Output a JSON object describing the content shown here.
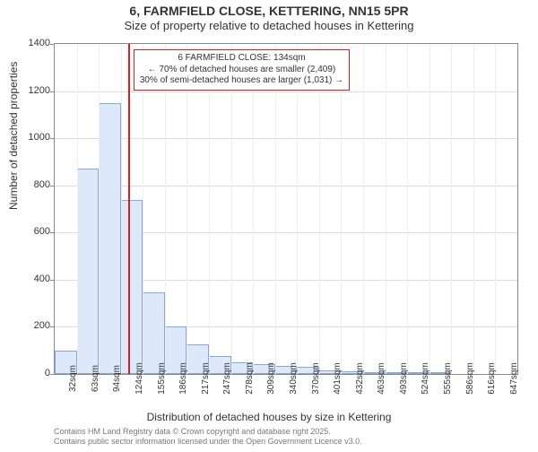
{
  "title_main": "6, FARMFIELD CLOSE, KETTERING, NN15 5PR",
  "title_sub": "Size of property relative to detached houses in Kettering",
  "y_axis_label": "Number of detached properties",
  "x_axis_label": "Distribution of detached houses by size in Kettering",
  "footer_line1": "Contains HM Land Registry data © Crown copyright and database right 2025.",
  "footer_line2": "Contains public sector information licensed under the Open Government Licence v3.0.",
  "chart": {
    "type": "histogram",
    "ylim": [
      0,
      1400
    ],
    "ytick_step": 200,
    "background_color": "#ffffff",
    "grid_color": "#dcdcdc",
    "bar_fill": "#dde8fa",
    "bar_border": "#88a8d8",
    "vline_color": "#d62020",
    "vline_category_index": 3,
    "x_categories": [
      "32sqm",
      "63sqm",
      "94sqm",
      "124sqm",
      "155sqm",
      "186sqm",
      "217sqm",
      "247sqm",
      "278sqm",
      "309sqm",
      "340sqm",
      "370sqm",
      "401sqm",
      "432sqm",
      "463sqm",
      "493sqm",
      "524sqm",
      "555sqm",
      "586sqm",
      "616sqm",
      "647sqm"
    ],
    "bar_values": [
      100,
      870,
      1150,
      740,
      345,
      200,
      125,
      75,
      50,
      43,
      35,
      29,
      15,
      10,
      7,
      5,
      3,
      2,
      1,
      1,
      0
    ],
    "info_box": {
      "line1": "6 FARMFIELD CLOSE: 134sqm",
      "line2": "← 70% of detached houses are smaller (2,409)",
      "line3": "30% of semi-detached houses are larger (1,031) →",
      "border_color": "#d62020"
    }
  }
}
